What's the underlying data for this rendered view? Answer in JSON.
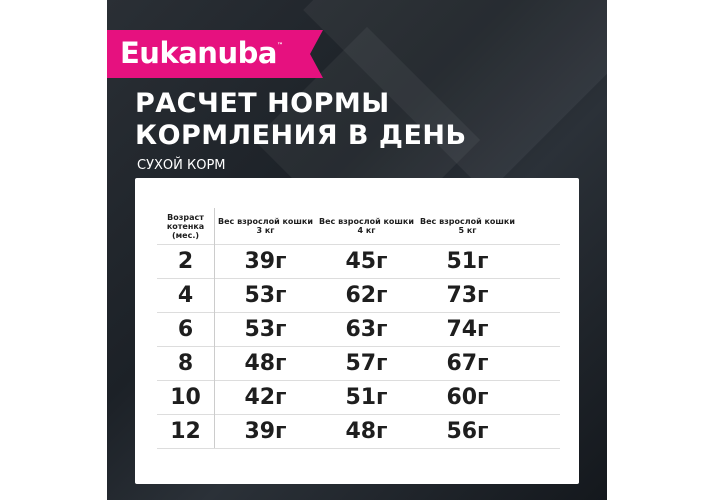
{
  "brand": {
    "name": "Eukanuba",
    "tm": "™",
    "color": "#e6117f"
  },
  "title": {
    "line1": "РАСЧЕТ НОРМЫ",
    "line2": "КОРМЛЕНИЯ В ДЕНЬ"
  },
  "subtitle": "СУХОЙ КОРМ",
  "table": {
    "headers": [
      "Возраст котенка (мес.)",
      "Вес взрослой кошки 3 кг",
      "Вес взрослой кошки 4 кг",
      "Вес взрослой кошки 5 кг"
    ],
    "rows": [
      [
        "2",
        "39г",
        "45г",
        "51г"
      ],
      [
        "4",
        "53г",
        "62г",
        "73г"
      ],
      [
        "6",
        "53г",
        "63г",
        "74г"
      ],
      [
        "8",
        "48г",
        "57г",
        "67г"
      ],
      [
        "10",
        "42г",
        "51г",
        "60г"
      ],
      [
        "12",
        "39г",
        "48г",
        "56г"
      ]
    ]
  }
}
